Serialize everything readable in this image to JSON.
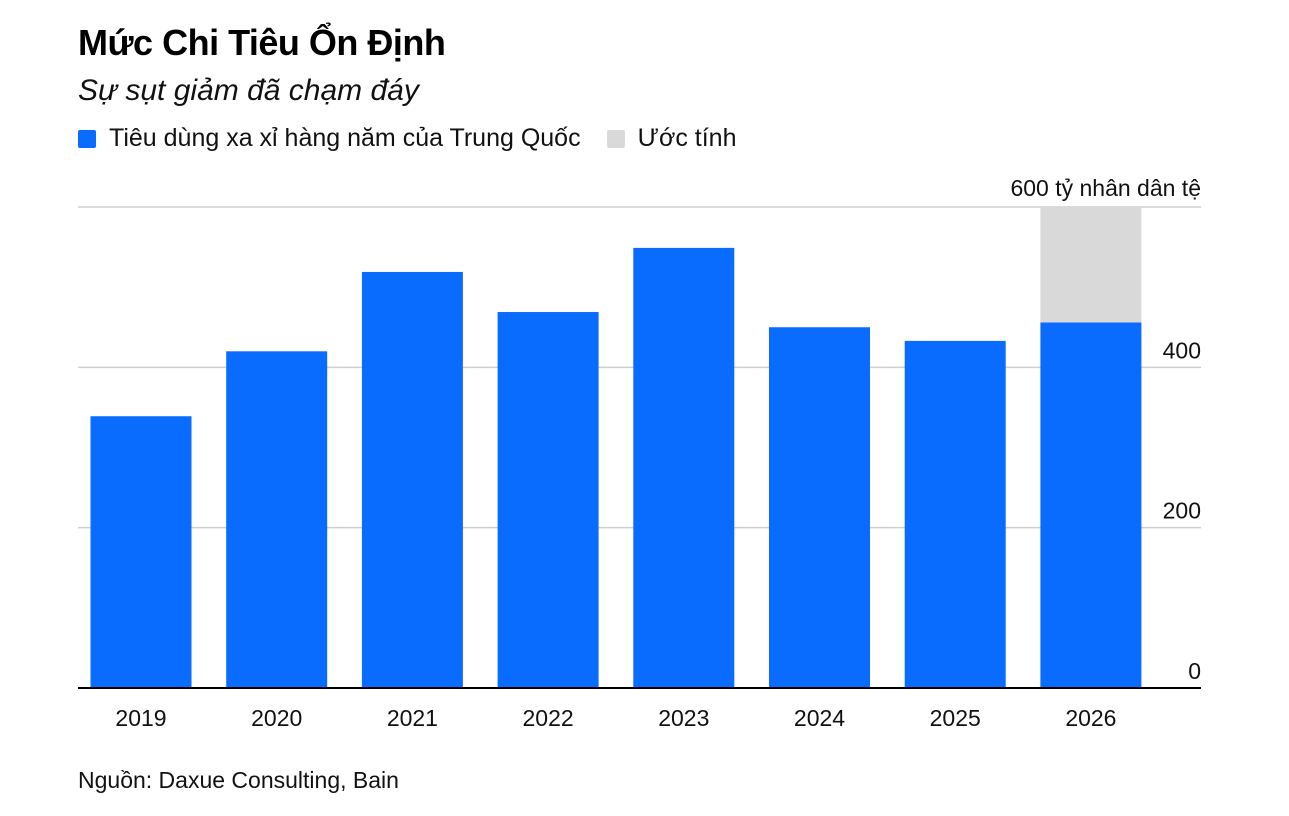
{
  "chart_data": {
    "type": "bar",
    "title": "Mức Chi Tiêu Ổn Định",
    "subtitle": "Sự sụt giảm đã chạm đáy",
    "unit_label": "600 tỷ nhân dân tệ",
    "categories": [
      "2019",
      "2020",
      "2021",
      "2022",
      "2023",
      "2024",
      "2025",
      "2026"
    ],
    "series": [
      {
        "name": "Tiêu dùng xa xỉ hàng năm của Trung Quốc",
        "color": "#0a6cff",
        "values": [
          339,
          420,
          519,
          469,
          549,
          450,
          433,
          456
        ]
      },
      {
        "name": "Ước tính",
        "color": "#d9d9d9",
        "values": [
          0,
          0,
          0,
          0,
          0,
          0,
          0,
          144
        ]
      }
    ],
    "stacked": true,
    "ylim": [
      0,
      600
    ],
    "yticks": [
      0,
      200,
      400,
      600
    ],
    "ytick_labels": [
      "0",
      "200",
      "400",
      ""
    ],
    "y_axis_side": "right",
    "grid": true,
    "legend_position": "top-left",
    "source": "Nguồn: Daxue Consulting, Bain"
  }
}
